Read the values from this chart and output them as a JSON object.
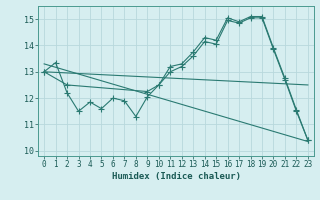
{
  "background_color": "#d6eef0",
  "grid_color": "#b8d8dc",
  "line_color": "#2a7a72",
  "xlabel": "Humidex (Indice chaleur)",
  "xlim": [
    -0.5,
    23.5
  ],
  "ylim": [
    9.8,
    15.5
  ],
  "yticks": [
    10,
    11,
    12,
    13,
    14,
    15
  ],
  "xticks": [
    0,
    1,
    2,
    3,
    4,
    5,
    6,
    7,
    8,
    9,
    10,
    11,
    12,
    13,
    14,
    15,
    16,
    17,
    18,
    19,
    20,
    21,
    22,
    23
  ],
  "series": [
    {
      "x": [
        0,
        1,
        2,
        3,
        4,
        5,
        6,
        7,
        8,
        9,
        10,
        11,
        12,
        13,
        14,
        15,
        16,
        17,
        18,
        19,
        20,
        21,
        22,
        23
      ],
      "y": [
        13.0,
        13.35,
        12.2,
        11.5,
        11.85,
        11.6,
        12.0,
        11.9,
        11.3,
        12.05,
        12.5,
        13.2,
        13.3,
        13.75,
        14.3,
        14.2,
        15.05,
        14.9,
        15.1,
        15.1,
        13.9,
        12.75,
        11.55,
        10.4
      ],
      "marker": true
    },
    {
      "x": [
        0,
        2,
        9,
        10,
        11,
        12,
        13,
        14,
        15,
        16,
        17,
        18,
        19,
        20,
        21,
        22,
        23
      ],
      "y": [
        13.0,
        12.5,
        12.25,
        12.5,
        13.0,
        13.2,
        13.6,
        14.15,
        14.05,
        14.95,
        14.85,
        15.05,
        15.05,
        13.85,
        12.7,
        11.5,
        10.4
      ],
      "marker": true
    },
    {
      "x": [
        0,
        23
      ],
      "y": [
        13.0,
        12.5
      ],
      "marker": false
    },
    {
      "x": [
        0,
        23
      ],
      "y": [
        13.3,
        10.35
      ],
      "marker": false
    }
  ]
}
